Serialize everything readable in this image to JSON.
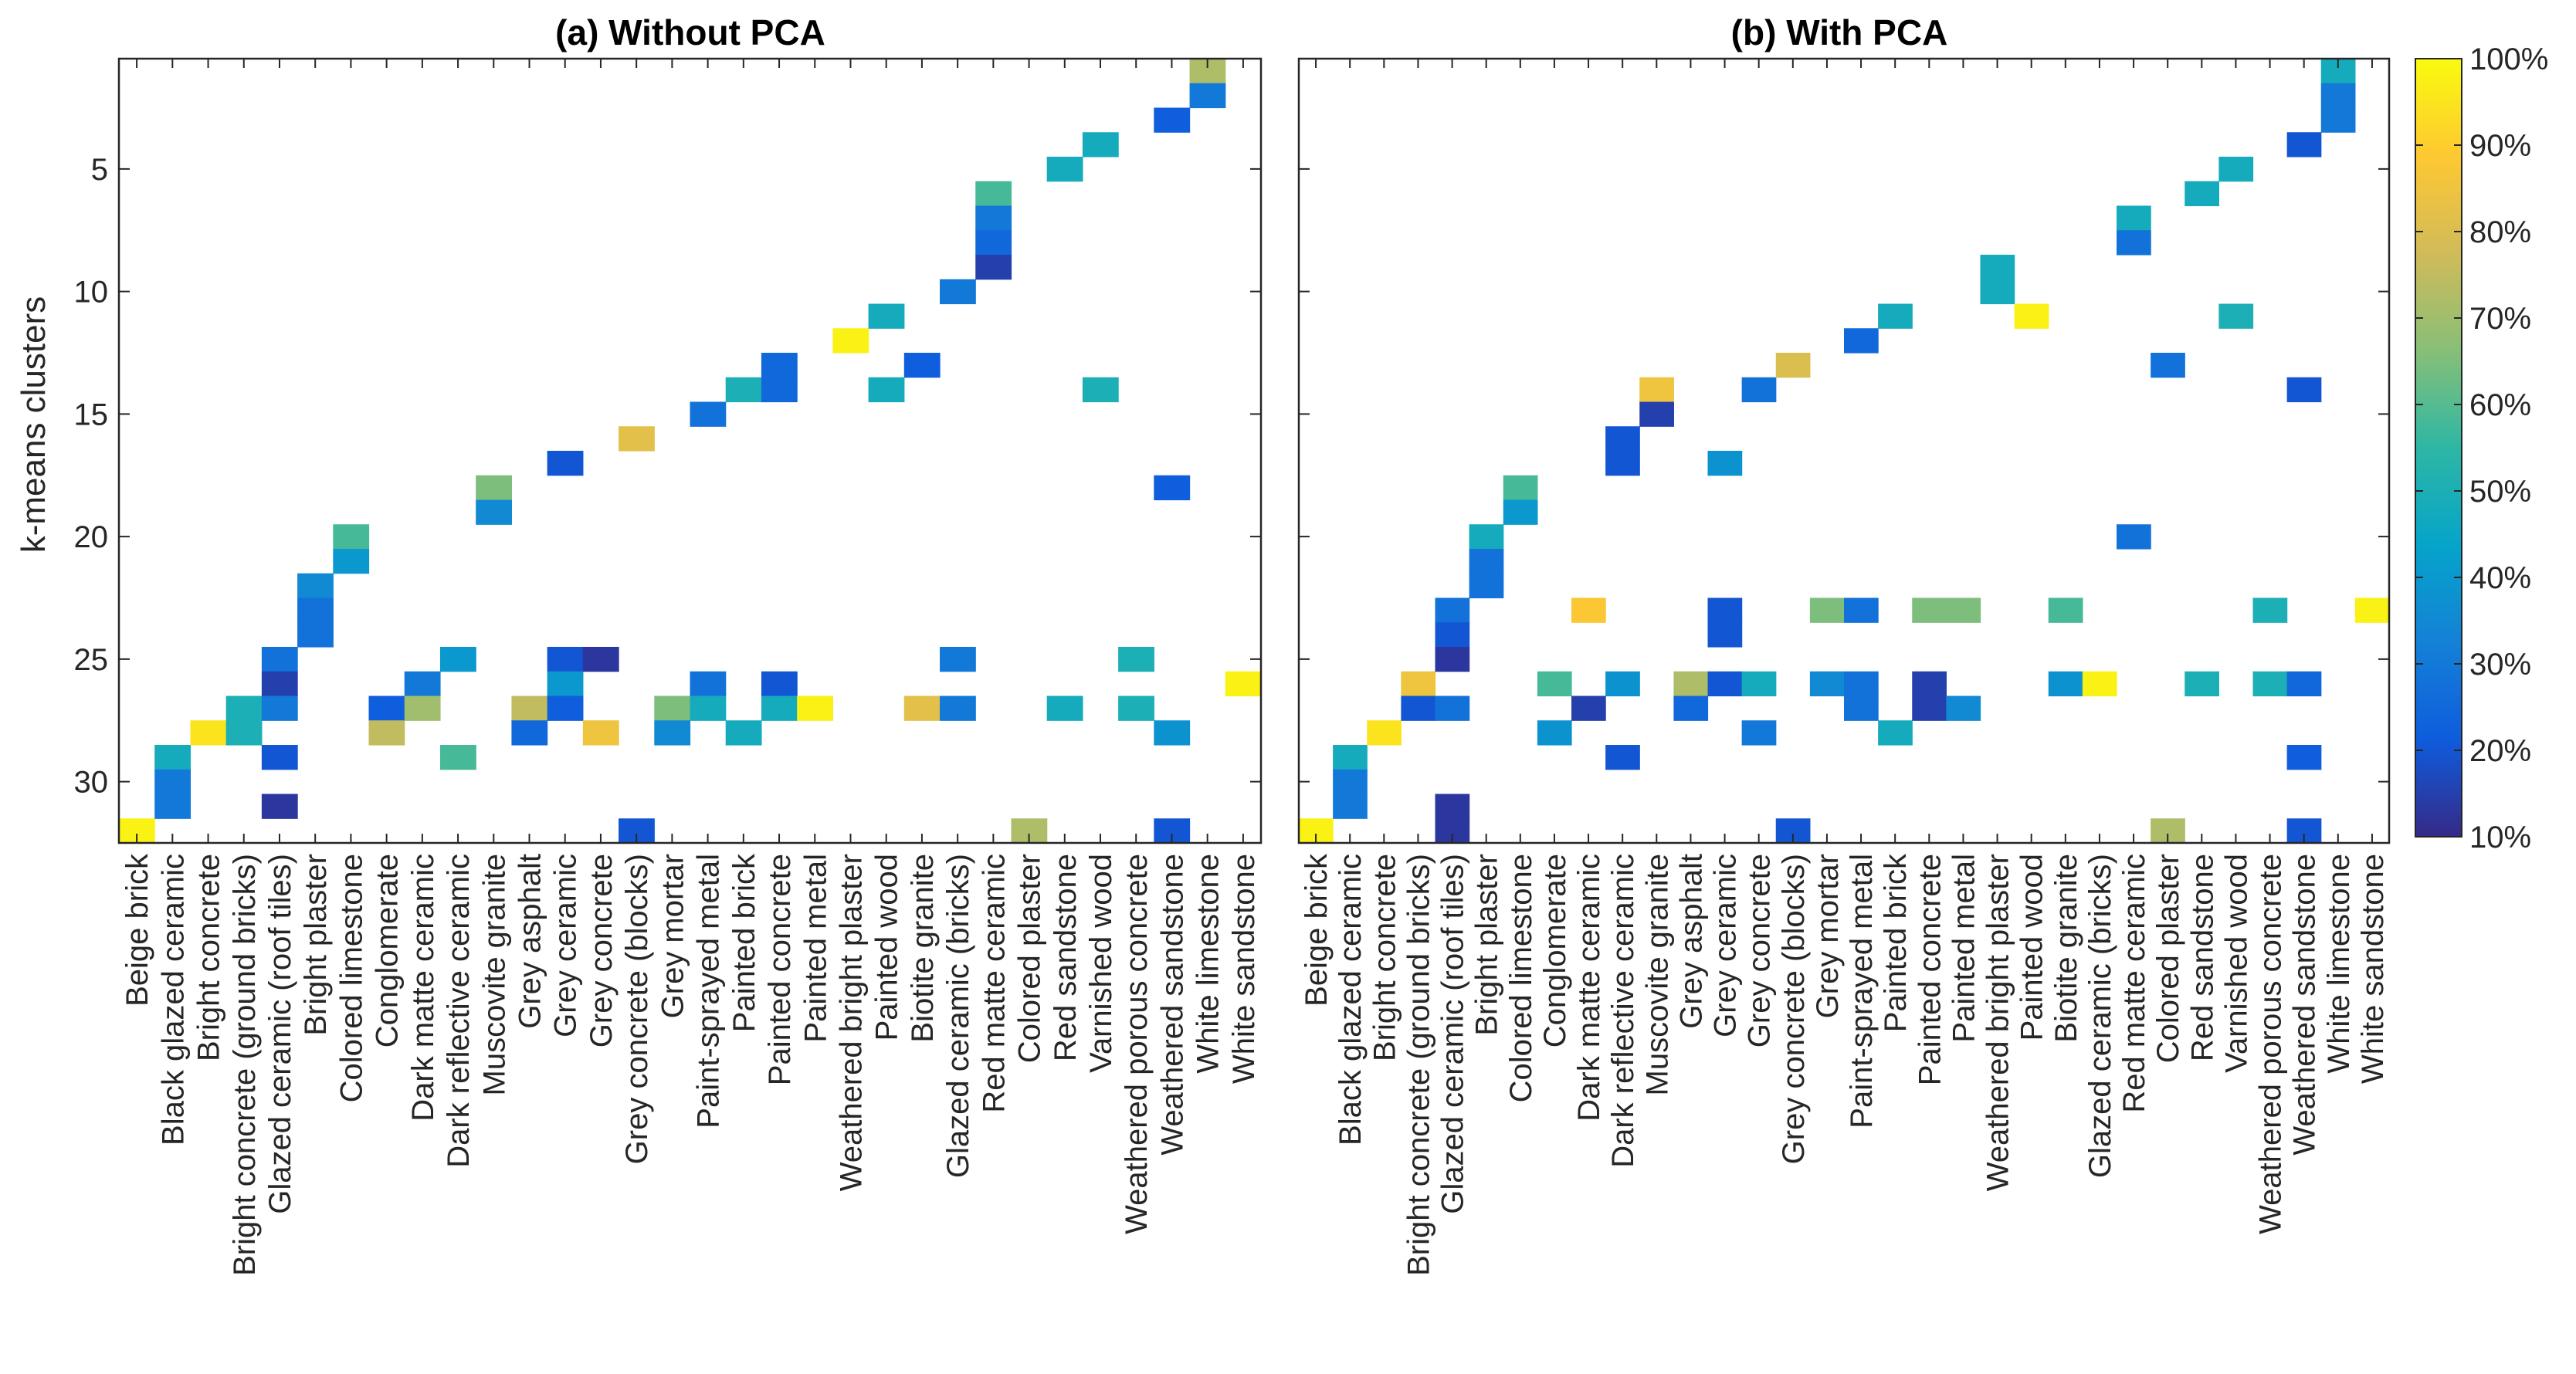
{
  "chart_data": [
    {
      "type": "heatmap",
      "title": "(a) Without PCA",
      "ylabel": "k-means clusters",
      "xlabel": "",
      "ylim": [
        1,
        32
      ],
      "y_ticks": [
        "5",
        "10",
        "15",
        "20",
        "25",
        "30"
      ],
      "categories": [
        "Beige brick",
        "Black glazed ceramic",
        "Bright concrete",
        "Bright concrete (ground bricks)",
        "Glazed ceramic (roof tiles)",
        "Bright plaster",
        "Colored limestone",
        "Conglomerate",
        "Dark matte ceramic",
        "Dark reflective ceramic",
        "Muscovite granite",
        "Grey asphalt",
        "Grey ceramic",
        "Grey concrete",
        "Grey concrete (blocks)",
        "Grey mortar",
        "Paint-sprayed metal",
        "Painted brick",
        "Painted concrete",
        "Painted metal",
        "Weathered bright plaster",
        "Painted wood",
        "Biotite granite",
        "Glazed ceramic (bricks)",
        "Red matte ceramic",
        "Colored plaster",
        "Red sandstone",
        "Varnished wood",
        "Weathered porous concrete",
        "Weathered sandstone",
        "White limestone",
        "White sandstone"
      ],
      "cells": [
        [
          1,
          32,
          98
        ],
        [
          2,
          29,
          48
        ],
        [
          2,
          30,
          30
        ],
        [
          2,
          31,
          30
        ],
        [
          3,
          28,
          95
        ],
        [
          4,
          27,
          50
        ],
        [
          4,
          28,
          50
        ],
        [
          5,
          25,
          28
        ],
        [
          5,
          26,
          15
        ],
        [
          5,
          27,
          30
        ],
        [
          5,
          29,
          20
        ],
        [
          5,
          31,
          13
        ],
        [
          6,
          22,
          35
        ],
        [
          6,
          23,
          28
        ],
        [
          6,
          24,
          28
        ],
        [
          7,
          20,
          58
        ],
        [
          7,
          21,
          40
        ],
        [
          8,
          27,
          22
        ],
        [
          8,
          28,
          75
        ],
        [
          9,
          26,
          30
        ],
        [
          9,
          27,
          70
        ],
        [
          10,
          25,
          40
        ],
        [
          10,
          29,
          58
        ],
        [
          11,
          18,
          65
        ],
        [
          11,
          19,
          35
        ],
        [
          12,
          27,
          75
        ],
        [
          12,
          28,
          25
        ],
        [
          13,
          17,
          20
        ],
        [
          13,
          25,
          20
        ],
        [
          13,
          26,
          40
        ],
        [
          13,
          27,
          22
        ],
        [
          14,
          25,
          13
        ],
        [
          14,
          28,
          85
        ],
        [
          15,
          16,
          82
        ],
        [
          15,
          32,
          20
        ],
        [
          16,
          27,
          65
        ],
        [
          16,
          28,
          35
        ],
        [
          17,
          15,
          28
        ],
        [
          17,
          26,
          28
        ],
        [
          17,
          27,
          48
        ],
        [
          18,
          14,
          50
        ],
        [
          18,
          28,
          48
        ],
        [
          19,
          13,
          25
        ],
        [
          19,
          14,
          25
        ],
        [
          19,
          26,
          20
        ],
        [
          19,
          27,
          48
        ],
        [
          20,
          27,
          98
        ],
        [
          21,
          12,
          98
        ],
        [
          22,
          11,
          48
        ],
        [
          22,
          14,
          48
        ],
        [
          23,
          13,
          22
        ],
        [
          23,
          27,
          82
        ],
        [
          24,
          10,
          30
        ],
        [
          24,
          25,
          30
        ],
        [
          24,
          27,
          30
        ],
        [
          25,
          6,
          58
        ],
        [
          25,
          7,
          30
        ],
        [
          25,
          8,
          25
        ],
        [
          25,
          9,
          15
        ],
        [
          26,
          32,
          72
        ],
        [
          27,
          5,
          48
        ],
        [
          27,
          27,
          48
        ],
        [
          28,
          4,
          48
        ],
        [
          28,
          14,
          50
        ],
        [
          29,
          25,
          50
        ],
        [
          29,
          27,
          50
        ],
        [
          30,
          3,
          22
        ],
        [
          30,
          18,
          22
        ],
        [
          30,
          28,
          38
        ],
        [
          30,
          32,
          20
        ],
        [
          31,
          1,
          72
        ],
        [
          31,
          2,
          30
        ],
        [
          32,
          26,
          98
        ]
      ]
    },
    {
      "type": "heatmap",
      "title": "(b) With PCA",
      "ylim": [
        1,
        32
      ],
      "categories": [
        "Beige brick",
        "Black glazed ceramic",
        "Bright concrete",
        "Bright concrete (ground bricks)",
        "Glazed ceramic (roof tiles)",
        "Bright plaster",
        "Colored limestone",
        "Conglomerate",
        "Dark matte ceramic",
        "Dark reflective ceramic",
        "Muscovite granite",
        "Grey asphalt",
        "Grey ceramic",
        "Grey concrete",
        "Grey concrete (blocks)",
        "Grey mortar",
        "Paint-sprayed metal",
        "Painted brick",
        "Painted concrete",
        "Painted metal",
        "Weathered bright plaster",
        "Painted wood",
        "Biotite granite",
        "Glazed ceramic (bricks)",
        "Red matte ceramic",
        "Colored plaster",
        "Red sandstone",
        "Varnished wood",
        "Weathered porous concrete",
        "Weathered sandstone",
        "White limestone",
        "White sandstone"
      ],
      "cells": [
        [
          1,
          32,
          98
        ],
        [
          2,
          29,
          48
        ],
        [
          2,
          30,
          30
        ],
        [
          2,
          31,
          30
        ],
        [
          3,
          28,
          95
        ],
        [
          4,
          26,
          85
        ],
        [
          4,
          27,
          20
        ],
        [
          5,
          23,
          28
        ],
        [
          5,
          24,
          20
        ],
        [
          5,
          25,
          13
        ],
        [
          5,
          27,
          28
        ],
        [
          5,
          31,
          13
        ],
        [
          5,
          32,
          13
        ],
        [
          6,
          20,
          48
        ],
        [
          6,
          21,
          28
        ],
        [
          6,
          22,
          28
        ],
        [
          7,
          18,
          58
        ],
        [
          7,
          19,
          40
        ],
        [
          8,
          26,
          58
        ],
        [
          8,
          28,
          38
        ],
        [
          9,
          23,
          88
        ],
        [
          9,
          27,
          15
        ],
        [
          10,
          16,
          20
        ],
        [
          10,
          17,
          20
        ],
        [
          10,
          26,
          38
        ],
        [
          10,
          29,
          20
        ],
        [
          11,
          14,
          85
        ],
        [
          11,
          15,
          15
        ],
        [
          12,
          26,
          72
        ],
        [
          12,
          27,
          25
        ],
        [
          13,
          17,
          38
        ],
        [
          13,
          23,
          20
        ],
        [
          13,
          24,
          20
        ],
        [
          13,
          26,
          20
        ],
        [
          14,
          14,
          28
        ],
        [
          14,
          26,
          48
        ],
        [
          14,
          28,
          30
        ],
        [
          15,
          13,
          80
        ],
        [
          15,
          32,
          20
        ],
        [
          16,
          23,
          65
        ],
        [
          16,
          26,
          35
        ],
        [
          17,
          12,
          25
        ],
        [
          17,
          23,
          28
        ],
        [
          17,
          26,
          28
        ],
        [
          17,
          27,
          28
        ],
        [
          18,
          11,
          48
        ],
        [
          18,
          28,
          48
        ],
        [
          19,
          23,
          65
        ],
        [
          19,
          26,
          15
        ],
        [
          19,
          27,
          15
        ],
        [
          20,
          23,
          65
        ],
        [
          20,
          27,
          35
        ],
        [
          21,
          9,
          48
        ],
        [
          21,
          10,
          48
        ],
        [
          22,
          11,
          98
        ],
        [
          23,
          23,
          58
        ],
        [
          23,
          26,
          38
        ],
        [
          24,
          26,
          98
        ],
        [
          25,
          7,
          48
        ],
        [
          25,
          8,
          28
        ],
        [
          25,
          20,
          28
        ],
        [
          26,
          13,
          28
        ],
        [
          26,
          32,
          72
        ],
        [
          27,
          6,
          48
        ],
        [
          27,
          26,
          50
        ],
        [
          28,
          5,
          48
        ],
        [
          28,
          11,
          50
        ],
        [
          29,
          23,
          50
        ],
        [
          29,
          26,
          50
        ],
        [
          30,
          4,
          20
        ],
        [
          30,
          14,
          20
        ],
        [
          30,
          26,
          25
        ],
        [
          30,
          29,
          22
        ],
        [
          30,
          32,
          20
        ],
        [
          31,
          1,
          48
        ],
        [
          31,
          2,
          30
        ],
        [
          31,
          3,
          30
        ],
        [
          32,
          23,
          98
        ]
      ]
    }
  ],
  "colorbar": {
    "labels": [
      "10%",
      "20%",
      "30%",
      "40%",
      "50%",
      "60%",
      "70%",
      "80%",
      "90%",
      "100%"
    ],
    "range": [
      10,
      100
    ]
  }
}
